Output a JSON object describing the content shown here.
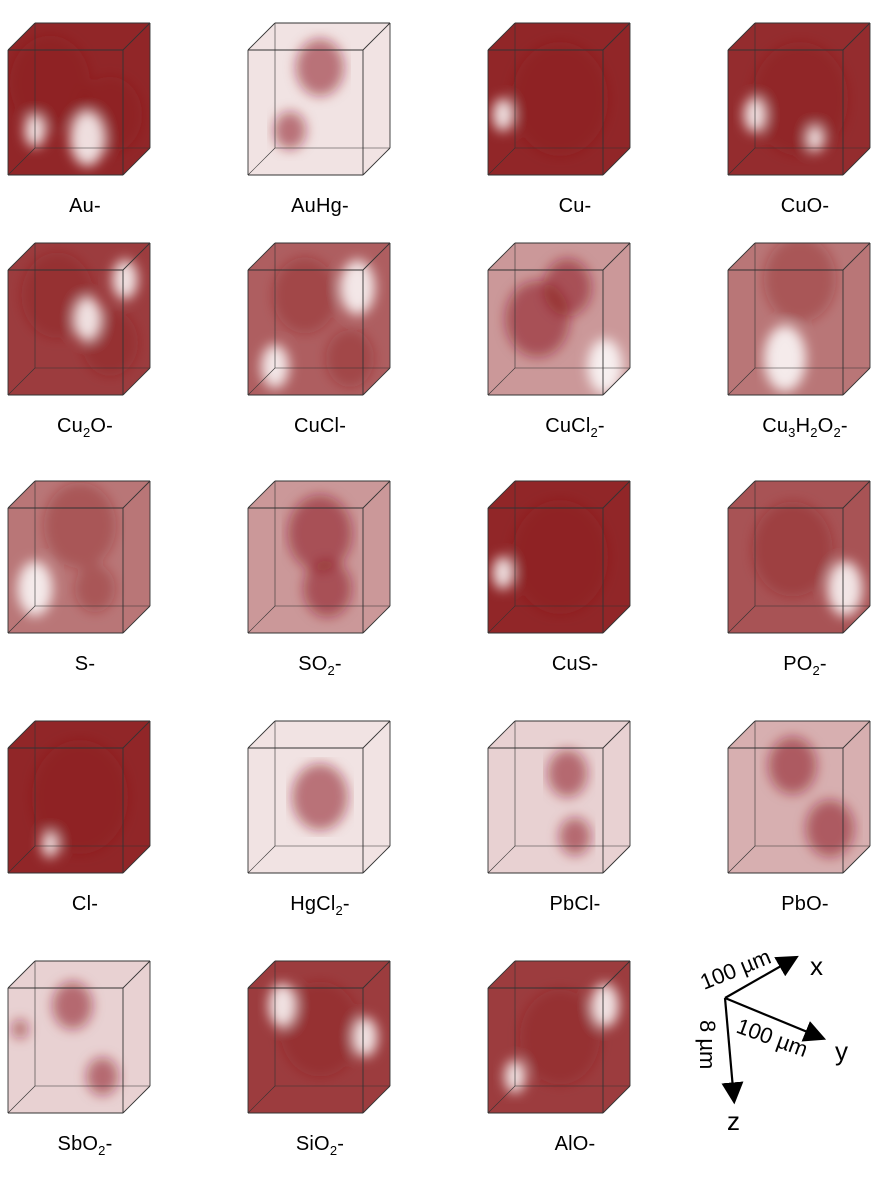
{
  "accent_color": "#8b1a1c",
  "labels": [
    {
      "base": "Au-",
      "parts": [
        [
          "Au-",
          ""
        ]
      ]
    },
    {
      "base": "AuHg-",
      "parts": [
        [
          "AuHg-",
          ""
        ]
      ]
    },
    {
      "base": "Cu-",
      "parts": [
        [
          "Cu-",
          ""
        ]
      ]
    },
    {
      "base": "CuO-",
      "parts": [
        [
          "CuO-",
          ""
        ]
      ]
    },
    {
      "base": "Cu2O-",
      "parts": [
        [
          "Cu",
          "2"
        ],
        [
          "O-",
          ""
        ]
      ]
    },
    {
      "base": "CuCl-",
      "parts": [
        [
          "CuCl-",
          ""
        ]
      ]
    },
    {
      "base": "CuCl2-",
      "parts": [
        [
          "CuCl",
          "2"
        ],
        [
          "-",
          ""
        ]
      ]
    },
    {
      "base": "Cu3H2O2-",
      "parts": [
        [
          "Cu",
          "3"
        ],
        [
          "H",
          "2"
        ],
        [
          "O",
          "2"
        ],
        [
          "-",
          ""
        ]
      ]
    },
    {
      "base": "S-",
      "parts": [
        [
          "S-",
          ""
        ]
      ]
    },
    {
      "base": "SO2-",
      "parts": [
        [
          "SO",
          "2"
        ],
        [
          "-",
          ""
        ]
      ]
    },
    {
      "base": "CuS-",
      "parts": [
        [
          "CuS-",
          ""
        ]
      ]
    },
    {
      "base": "PO2-",
      "parts": [
        [
          "PO",
          "2"
        ],
        [
          "-",
          ""
        ]
      ]
    },
    {
      "base": "Cl-",
      "parts": [
        [
          "Cl-",
          ""
        ]
      ]
    },
    {
      "base": "HgCl2-",
      "parts": [
        [
          "HgCl",
          "2"
        ],
        [
          "-",
          ""
        ]
      ]
    },
    {
      "base": "PbCl-",
      "parts": [
        [
          "PbCl-",
          ""
        ]
      ]
    },
    {
      "base": "PbO-",
      "parts": [
        [
          "PbO-",
          ""
        ]
      ]
    },
    {
      "base": "SbO2-",
      "parts": [
        [
          "SbO",
          "2"
        ],
        [
          "-",
          ""
        ]
      ]
    },
    {
      "base": "SiO2-",
      "parts": [
        [
          "SiO",
          "2"
        ],
        [
          "-",
          ""
        ]
      ]
    },
    {
      "base": "AlO-",
      "parts": [
        [
          "AlO-",
          ""
        ]
      ]
    }
  ],
  "axes": {
    "x_label": "x",
    "y_label": "y",
    "z_label": "z",
    "x_scale": "100 µm",
    "y_scale": "100 µm",
    "z_scale": "8 µm"
  }
}
